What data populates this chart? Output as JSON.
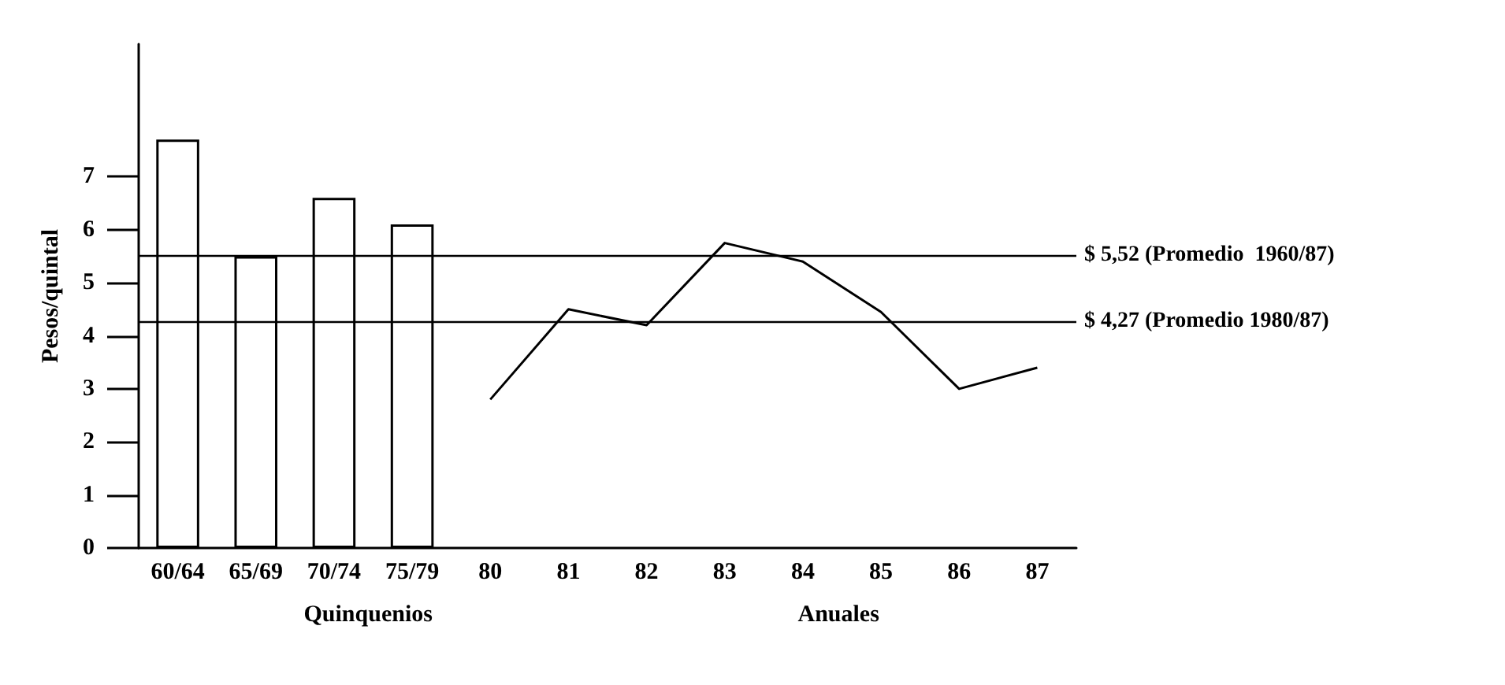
{
  "chart_data": {
    "type": "bar",
    "ylabel": "Pesos/quintal",
    "categories": [
      "60/64",
      "65/69",
      "70/74",
      "75/79",
      "80",
      "81",
      "82",
      "83",
      "84",
      "85",
      "86",
      "87"
    ],
    "series": [
      {
        "color": "#000000",
        "values": [
          7.7,
          5.5,
          6.6,
          6.1,
          null,
          null,
          null,
          null,
          null,
          null,
          null,
          null
        ]
      },
      {
        "type": "line",
        "color": "#000000",
        "values": [
          null,
          null,
          null,
          null,
          2.8,
          4.5,
          4.2,
          5.75,
          5.4,
          4.45,
          3.0,
          3.4
        ]
      }
    ],
    "ylim": [
      0,
      9.5
    ],
    "yticks": [
      0,
      1,
      2,
      3,
      4,
      5,
      6,
      7
    ],
    "ref_lines": [
      {
        "axis": "y",
        "value": 5.52,
        "label": "$ 5,52 (Promedio  1960/87)"
      },
      {
        "axis": "y",
        "value": 4.27,
        "label": "$ 4,27 (Promedio 1980/87)"
      }
    ],
    "annotations": [
      "Quinquenios",
      "Anuales"
    ],
    "grid": false,
    "legend": false,
    "marker": "none"
  }
}
